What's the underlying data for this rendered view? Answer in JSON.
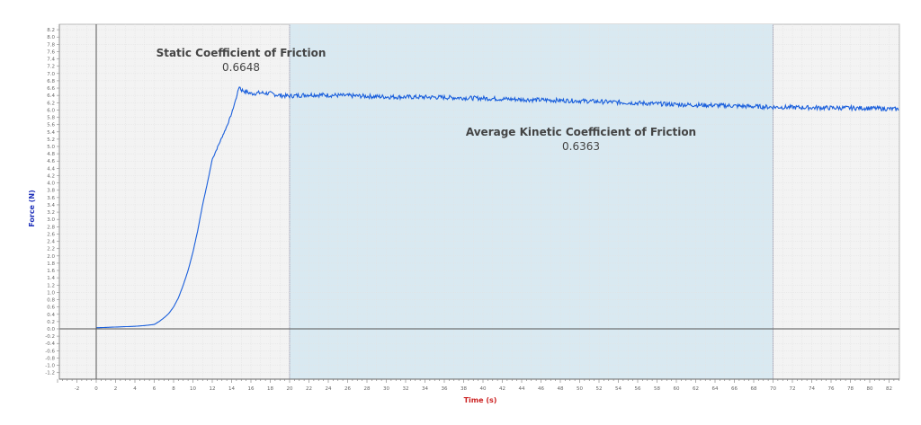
{
  "chart_data": {
    "type": "line",
    "title": "",
    "xlabel": "Time (s)",
    "ylabel": "Force (N)",
    "xlim": [
      -4,
      83.5
    ],
    "ylim": [
      -1.3,
      8.3
    ],
    "x_ticks": [
      -2,
      0,
      2,
      4,
      6,
      8,
      10,
      12,
      14,
      16,
      18,
      20,
      22,
      24,
      26,
      28,
      30,
      32,
      34,
      36,
      38,
      40,
      42,
      44,
      46,
      48,
      50,
      52,
      54,
      56,
      58,
      60,
      62,
      64,
      66,
      68,
      70,
      72,
      74,
      76,
      78,
      80,
      82
    ],
    "y_ticks": [
      -1.2,
      -1.0,
      -0.8,
      -0.6,
      -0.4,
      -0.2,
      0.0,
      0.2,
      0.4,
      0.6,
      0.8,
      1.0,
      1.2,
      1.4,
      1.6,
      1.8,
      2.0,
      2.2,
      2.4,
      2.6,
      2.8,
      3.0,
      3.2,
      3.4,
      3.6,
      3.8,
      4.0,
      4.2,
      4.4,
      4.6,
      4.8,
      5.0,
      5.2,
      5.4,
      5.6,
      5.8,
      6.0,
      6.2,
      6.4,
      6.6,
      6.8,
      7.0,
      7.2,
      7.4,
      7.6,
      7.8,
      8.0,
      8.2
    ],
    "grid": true,
    "legend": null,
    "highlight_region": {
      "x_start": 20,
      "x_end": 70,
      "color": "#d6e8f0"
    },
    "series": [
      {
        "name": "Force",
        "color": "#1a5fdc",
        "x": [
          0,
          1,
          2,
          3,
          4,
          5,
          6,
          6.5,
          7,
          7.5,
          8,
          8.5,
          9,
          9.5,
          10,
          10.5,
          11,
          11.5,
          12,
          12.5,
          13,
          13.5,
          14,
          14.5,
          14.8,
          15,
          15.5,
          16,
          17,
          18,
          19,
          20,
          22,
          25,
          30,
          35,
          40,
          45,
          50,
          55,
          60,
          65,
          70,
          75,
          80,
          83
        ],
        "y": [
          0.03,
          0.04,
          0.05,
          0.06,
          0.07,
          0.09,
          0.12,
          0.2,
          0.3,
          0.42,
          0.6,
          0.85,
          1.2,
          1.6,
          2.1,
          2.7,
          3.4,
          4.0,
          4.65,
          4.95,
          5.25,
          5.55,
          5.9,
          6.35,
          6.66,
          6.55,
          6.5,
          6.45,
          6.47,
          6.45,
          6.4,
          6.38,
          6.42,
          6.4,
          6.36,
          6.35,
          6.32,
          6.28,
          6.25,
          6.2,
          6.15,
          6.12,
          6.08,
          6.06,
          6.05,
          6.02
        ],
        "noise_amplitude_after_peak": 0.06
      }
    ],
    "annotations": [
      {
        "title": "Static Coefficient of Friction",
        "value": "0.6648",
        "near_x": 14.8,
        "near_y": 6.66
      },
      {
        "title": "Average Kinetic Coefficient of Friction",
        "value": "0.6363",
        "region": [
          20,
          70
        ]
      }
    ]
  },
  "labels": {
    "x_axis_title": "Time (s)",
    "y_axis_title": "Force (N)",
    "static_title": "Static Coefficient of Friction",
    "static_value": "0.6648",
    "kinetic_title": "Average Kinetic Coefficient of Friction",
    "kinetic_value": "0.6363"
  },
  "colors": {
    "plot_bg": "#f3f3f3",
    "region_bg": "#d9e9f1",
    "line": "#1a5fdc",
    "grid": "#e2e2e2",
    "axis": "#555555",
    "x_title": "#cc2222",
    "y_title": "#2233bb"
  }
}
